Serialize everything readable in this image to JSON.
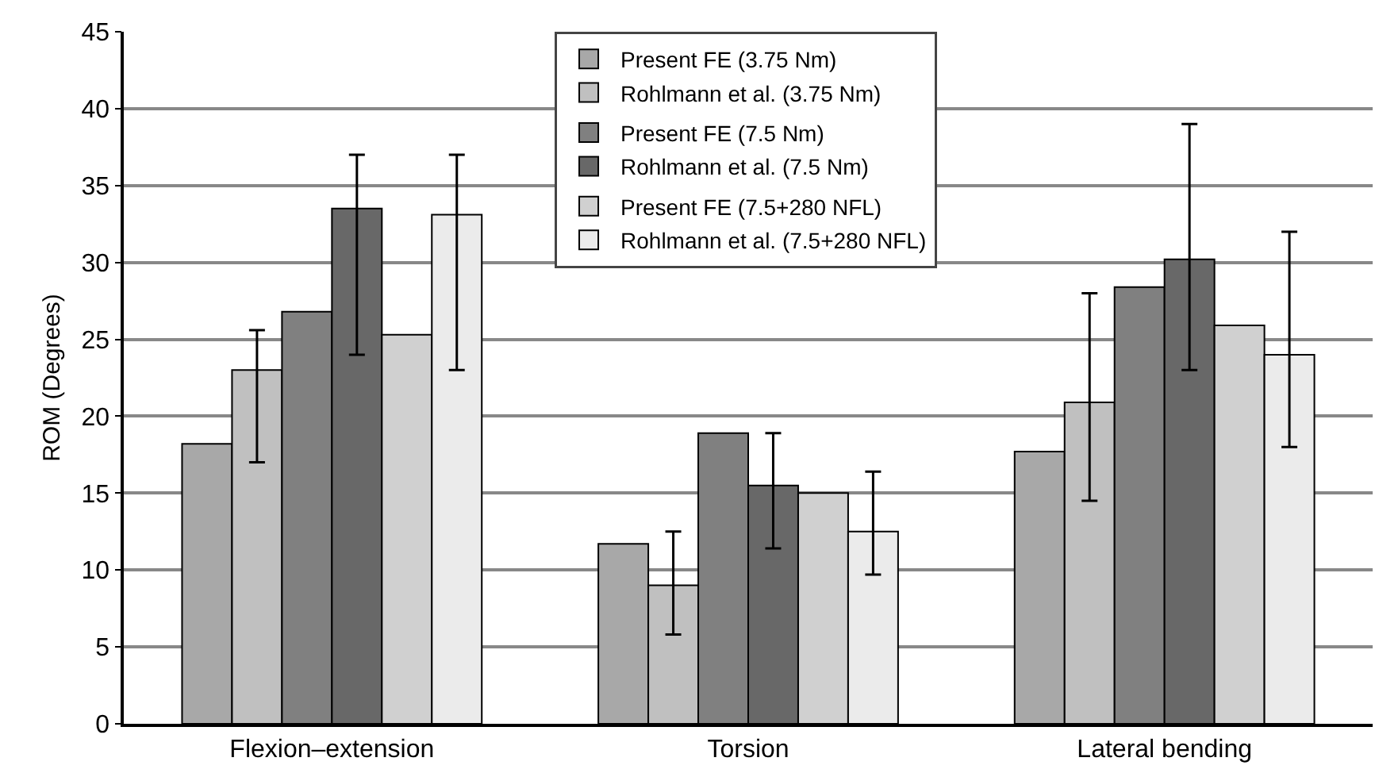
{
  "chart_data": {
    "type": "bar",
    "ylabel": "ROM (Degrees)",
    "categories": [
      "Flexion–extension",
      "Torsion",
      "Lateral bending"
    ],
    "series": [
      {
        "name": "Present FE (3.75 Nm)",
        "color": "#a8a8a8",
        "values": [
          18.2,
          11.7,
          17.7
        ]
      },
      {
        "name": "Rohlmann et al. (3.75 Nm)",
        "color": "#c0c0c0",
        "values": [
          23,
          9,
          20.9
        ],
        "errors": [
          [
            17,
            25.6
          ],
          [
            5.8,
            12.5
          ],
          [
            14.5,
            28
          ]
        ]
      },
      {
        "name": "Present FE (7.5 Nm)",
        "color": "#808080",
        "values": [
          26.8,
          18.9,
          28.4
        ]
      },
      {
        "name": "Rohlmann et al. (7.5 Nm)",
        "color": "#686868",
        "values": [
          33.5,
          15.5,
          30.2
        ],
        "errors": [
          [
            24,
            37
          ],
          [
            11.4,
            18.9
          ],
          [
            23,
            39
          ]
        ]
      },
      {
        "name": "Present FE (7.5+280 NFL)",
        "color": "#d0d0d0",
        "values": [
          25.3,
          15,
          25.9
        ]
      },
      {
        "name": "Rohlmann et al. (7.5+280 NFL)",
        "color": "#ebebeb",
        "values": [
          33.1,
          12.5,
          24
        ],
        "errors": [
          [
            23,
            37
          ],
          [
            9.7,
            16.4
          ],
          [
            18,
            32
          ]
        ]
      }
    ],
    "ylim": [
      0,
      45
    ],
    "yticks": [
      0,
      5,
      10,
      15,
      20,
      25,
      30,
      35,
      40,
      45
    ],
    "grid": "y",
    "legend": "top"
  }
}
